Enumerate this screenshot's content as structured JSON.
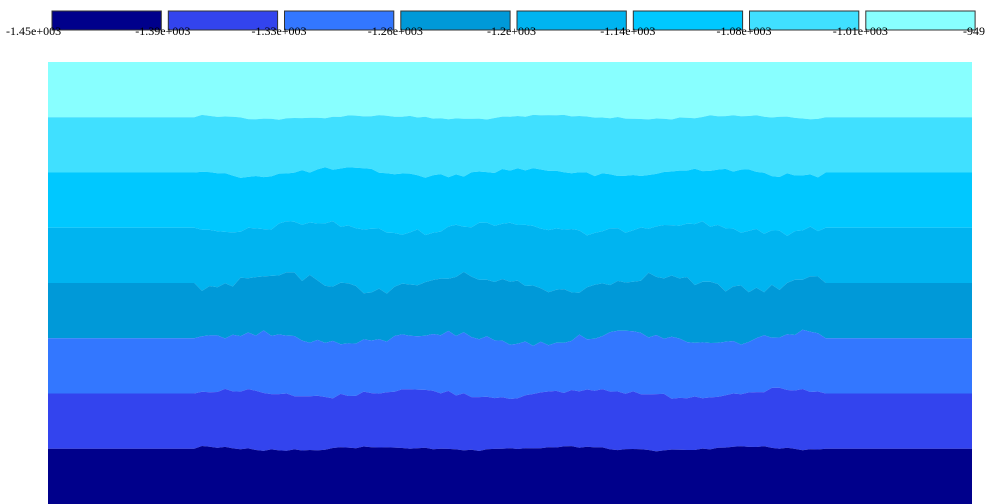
{
  "chart_data": {
    "type": "heatmap",
    "title": "",
    "colorbar": {
      "tick_labels": [
        "-1.45e+003",
        "-1.39e+003",
        "-1.33e+003",
        "-1.26e+003",
        "-1.2e+003",
        "-1.14e+003",
        "-1.08e+003",
        "-1.01e+003",
        "-949"
      ],
      "levels": [
        -1450,
        -1390,
        -1330,
        -1260,
        -1200,
        -1140,
        -1080,
        -1010,
        -949
      ],
      "colors": [
        "#00008b",
        "#3344ee",
        "#3377ff",
        "#0099d8",
        "#00b4f0",
        "#00c8ff",
        "#40e0ff",
        "#88ffff"
      ]
    },
    "field": {
      "orientation": "horizontal-bands",
      "bands_top_to_bottom": [
        {
          "range": [
            -1010,
            -949
          ],
          "color": "#88ffff"
        },
        {
          "range": [
            -1080,
            -1010
          ],
          "color": "#40e0ff"
        },
        {
          "range": [
            -1140,
            -1080
          ],
          "color": "#00c8ff"
        },
        {
          "range": [
            -1200,
            -1140
          ],
          "color": "#00b4f0"
        },
        {
          "range": [
            -1260,
            -1200
          ],
          "color": "#0099d8"
        },
        {
          "range": [
            -1330,
            -1260
          ],
          "color": "#3377ff"
        },
        {
          "range": [
            -1390,
            -1330
          ],
          "color": "#3344ee"
        },
        {
          "range": [
            -1450,
            -1390
          ],
          "color": "#00008b"
        }
      ]
    }
  }
}
